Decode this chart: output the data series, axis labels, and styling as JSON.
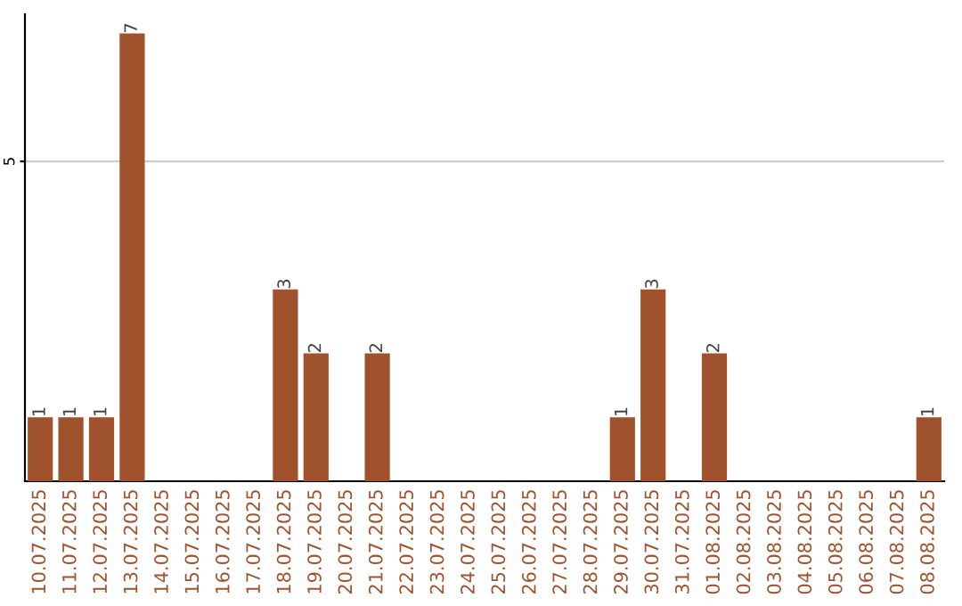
{
  "chart_data": {
    "type": "bar",
    "categories": [
      "10.07.2025",
      "11.07.2025",
      "12.07.2025",
      "13.07.2025",
      "14.07.2025",
      "15.07.2025",
      "16.07.2025",
      "17.07.2025",
      "18.07.2025",
      "19.07.2025",
      "20.07.2025",
      "21.07.2025",
      "22.07.2025",
      "23.07.2025",
      "24.07.2025",
      "25.07.2025",
      "26.07.2025",
      "27.07.2025",
      "28.07.2025",
      "29.07.2025",
      "30.07.2025",
      "31.07.2025",
      "01.08.2025",
      "02.08.2025",
      "03.08.2025",
      "04.08.2025",
      "05.08.2025",
      "06.08.2025",
      "07.08.2025",
      "08.08.2025"
    ],
    "values": [
      1,
      1,
      1,
      7,
      0,
      0,
      0,
      0,
      3,
      2,
      0,
      2,
      0,
      0,
      0,
      0,
      0,
      0,
      0,
      1,
      3,
      0,
      2,
      0,
      0,
      0,
      0,
      0,
      0,
      1
    ],
    "value_labels": [
      "1",
      "1",
      "1",
      "7",
      null,
      null,
      null,
      null,
      "3",
      "2",
      null,
      "2",
      null,
      null,
      null,
      null,
      null,
      null,
      null,
      "1",
      "3",
      null,
      "2",
      null,
      null,
      null,
      null,
      null,
      null,
      "1"
    ],
    "color": "#a0522d",
    "ylim": [
      0,
      7.3
    ],
    "yticks": [
      5
    ],
    "grid": "y",
    "legend": false
  }
}
